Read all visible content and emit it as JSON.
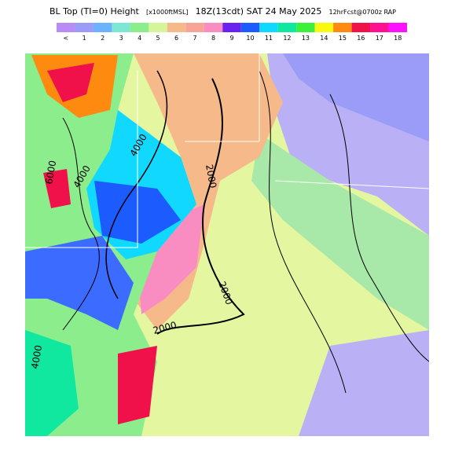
{
  "header": {
    "title": "BL Top (TI=0) Height",
    "units": "[x1000ftMSL]",
    "valid": "18Z(13cdt) SAT 24 May 2025",
    "forecast": "12hrFcst@0700z RAP"
  },
  "colorbar": [
    {
      "label": "<",
      "color": "#b98cf5"
    },
    {
      "label": "1",
      "color": "#9b9cf7"
    },
    {
      "label": "2",
      "color": "#6cb2ff"
    },
    {
      "label": "3",
      "color": "#7ce8d4"
    },
    {
      "label": "4",
      "color": "#8ced8c"
    },
    {
      "label": "5",
      "color": "#d6f59a"
    },
    {
      "label": "6",
      "color": "#f5b98a"
    },
    {
      "label": "7",
      "color": "#f7a397"
    },
    {
      "label": "8",
      "color": "#f98cc0"
    },
    {
      "label": "9",
      "color": "#6a22f0"
    },
    {
      "label": "10",
      "color": "#1c5cff"
    },
    {
      "label": "11",
      "color": "#10d8ff"
    },
    {
      "label": "12",
      "color": "#10e8a0"
    },
    {
      "label": "13",
      "color": "#3cf03c"
    },
    {
      "label": "14",
      "color": "#f8f810"
    },
    {
      "label": "15",
      "color": "#ff8a10"
    },
    {
      "label": "16",
      "color": "#f0104a"
    },
    {
      "label": "17",
      "color": "#ff1090"
    },
    {
      "label": "18",
      "color": "#ff10ff"
    }
  ],
  "contour_labels": [
    "2000",
    "2000",
    "2000",
    "4000",
    "4000",
    "6000",
    "4000"
  ]
}
